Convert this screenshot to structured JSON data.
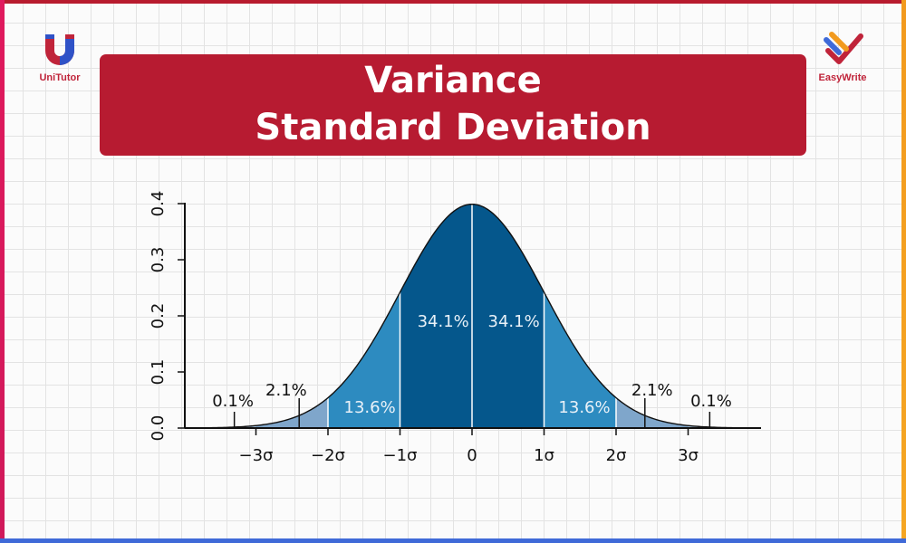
{
  "brand_left": {
    "name": "UniTutor",
    "icon": "magnet-u-icon",
    "colors": {
      "red": "#c0243a",
      "blue": "#2f52c7"
    }
  },
  "brand_right": {
    "name": "EasyWrite",
    "icon": "pencil-check-icon",
    "colors": {
      "red": "#c0243a",
      "blue": "#3f6ad8",
      "orange": "#f29a1e"
    }
  },
  "title": {
    "line1": "Variance",
    "line2": "Standard Deviation",
    "background": "#b71b31"
  },
  "chart_data": {
    "type": "area",
    "distribution": "standard normal",
    "x_tick_labels": [
      "−3σ",
      "−2σ",
      "−1σ",
      "0",
      "1σ",
      "2σ",
      "3σ"
    ],
    "x_ticks": [
      -3,
      -2,
      -1,
      0,
      1,
      2,
      3
    ],
    "xlim": [
      -4,
      4
    ],
    "y_ticks": [
      0.0,
      0.1,
      0.2,
      0.3,
      0.4
    ],
    "y_tick_labels": [
      "0.0",
      "0.1",
      "0.2",
      "0.3",
      "0.4"
    ],
    "ylim": [
      0,
      0.4
    ],
    "regions": [
      {
        "from": -3,
        "to": -2,
        "label": "2.1%",
        "color": "#7fa6cb"
      },
      {
        "from": -2,
        "to": -1,
        "label": "13.6%",
        "color": "#2d8bc0"
      },
      {
        "from": -1,
        "to": 0,
        "label": "34.1%",
        "color": "#05578c"
      },
      {
        "from": 0,
        "to": 1,
        "label": "34.1%",
        "color": "#05578c"
      },
      {
        "from": 1,
        "to": 2,
        "label": "13.6%",
        "color": "#2d8bc0"
      },
      {
        "from": 2,
        "to": 3,
        "label": "2.1%",
        "color": "#7fa6cb"
      }
    ],
    "tail_labels": [
      {
        "side": "left",
        "label": "0.1%"
      },
      {
        "side": "right",
        "label": "0.1%"
      }
    ],
    "grid": false,
    "xlabel": "",
    "ylabel": ""
  }
}
